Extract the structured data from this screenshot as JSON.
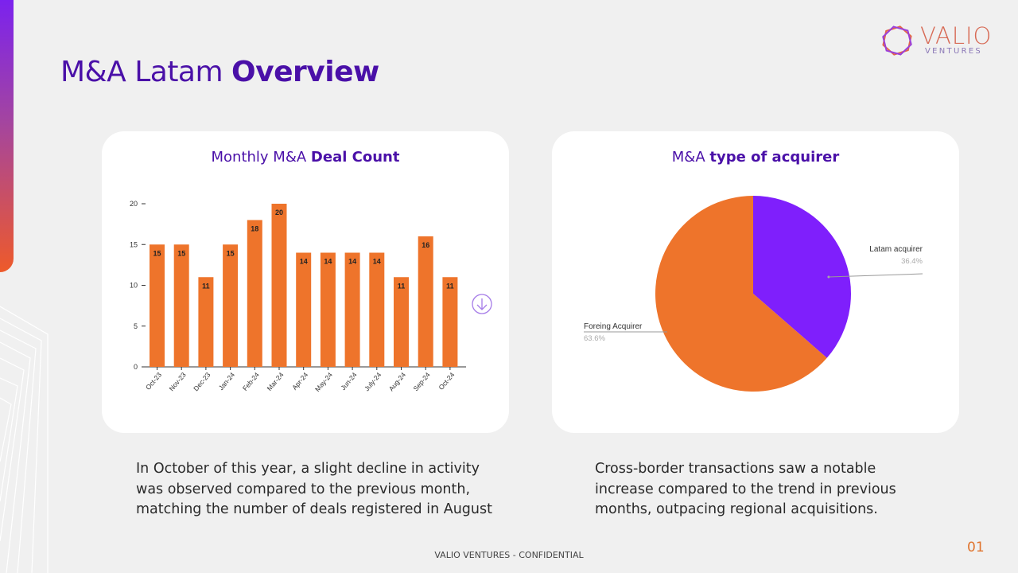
{
  "page": {
    "title_regular": "M&A Latam ",
    "title_bold": "Overview",
    "footer": "VALIO VENTURES - CONFIDENTIAL",
    "page_number": "01"
  },
  "logo": {
    "word": "VALIO",
    "sub": "VENTURES"
  },
  "colors": {
    "purple": "#4a10a8",
    "orange": "#ee742b",
    "violet": "#7f1ffc",
    "accent_bar": "#ee5a2a"
  },
  "left_card": {
    "title_regular": "Monthly M&A ",
    "title_bold": "Deal Count",
    "text": "In October of this year, a slight decline in activity was observed compared to the previous month, matching the number of deals registered in August",
    "icon": "arrow-down-circle-icon"
  },
  "right_card": {
    "title_regular": "M&A ",
    "title_bold": "type of acquirer",
    "text": "Cross-border transactions saw a notable increase compared to the trend in previous months, outpacing regional acquisitions."
  },
  "chart_data": [
    {
      "type": "bar",
      "categories": [
        "Oct-23",
        "Nov-23",
        "Dec-23",
        "Jan-24",
        "Feb-24",
        "Mar-24",
        "Apr-24",
        "May-24",
        "Jun-24",
        "July-24",
        "Aug-24",
        "Sep-24",
        "Oct-24"
      ],
      "values": [
        15,
        15,
        11,
        15,
        18,
        20,
        14,
        14,
        14,
        14,
        11,
        16,
        11
      ],
      "ylim": [
        0,
        20
      ],
      "yticks": [
        0,
        5,
        10,
        15,
        20
      ],
      "color": "#ee742b",
      "grid": false
    },
    {
      "type": "pie",
      "slices": [
        {
          "label": "Latam acquirer",
          "value": 36.4,
          "display": "36.4%",
          "color": "#7f1ffc"
        },
        {
          "label": "Foreing Acquirer",
          "value": 63.6,
          "display": "63.6%",
          "color": "#ee742b"
        }
      ]
    }
  ]
}
